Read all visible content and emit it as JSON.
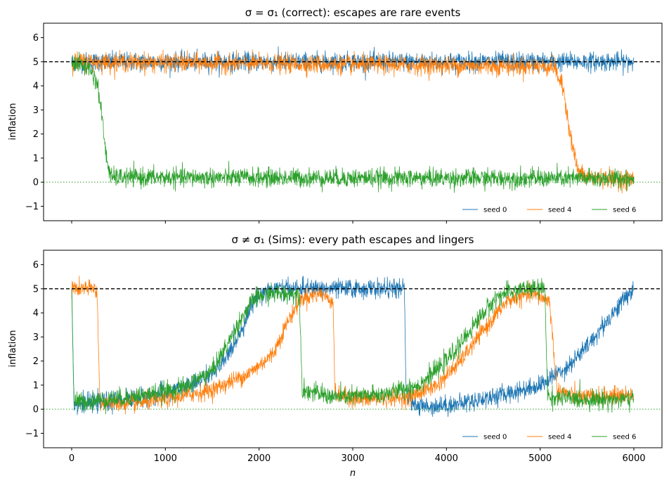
{
  "chart_data": [
    {
      "type": "line",
      "title": "σ = σ₁ (correct): escapes are rare events",
      "xlabel": "",
      "ylabel": "inflation",
      "xlim": [
        -300,
        6300
      ],
      "ylim": [
        -1.6,
        6.6
      ],
      "xticks": [
        0,
        1000,
        2000,
        3000,
        4000,
        5000,
        6000
      ],
      "yticks": [
        -1,
        0,
        1,
        2,
        3,
        4,
        5,
        6
      ],
      "ytick_labels": [
        "−1",
        "0",
        "1",
        "2",
        "3",
        "4",
        "5",
        "6"
      ],
      "x_tick_labels_shown": false,
      "reference_lines": [
        {
          "y": 5,
          "style": "dashed",
          "color": "#000000"
        },
        {
          "y": 0,
          "style": "dotted",
          "color": "#2ca02c"
        }
      ],
      "legend_position": "lower-right",
      "series": [
        {
          "name": "seed 0",
          "color": "#1f77b4",
          "noise": 0.35,
          "points": [
            [
              0,
              5
            ],
            [
              6000,
              5
            ]
          ]
        },
        {
          "name": "seed 4",
          "color": "#ff7f0e",
          "noise": 0.35,
          "points": [
            [
              0,
              5
            ],
            [
              5150,
              4.8
            ],
            [
              5250,
              3.8
            ],
            [
              5330,
              1.8
            ],
            [
              5400,
              0.5
            ],
            [
              5480,
              0.2
            ],
            [
              6000,
              0.1
            ]
          ]
        },
        {
          "name": "seed 6",
          "color": "#2ca02c",
          "noise": 0.35,
          "points": [
            [
              0,
              5
            ],
            [
              200,
              4.7
            ],
            [
              280,
              4.0
            ],
            [
              330,
              2.5
            ],
            [
              370,
              1.0
            ],
            [
              420,
              0.2
            ],
            [
              6000,
              0.15
            ]
          ]
        }
      ]
    },
    {
      "type": "line",
      "title": "σ ≠ σ₁ (Sims): every path escapes and lingers",
      "xlabel": "n",
      "ylabel": "inflation",
      "xlim": [
        -300,
        6300
      ],
      "ylim": [
        -1.6,
        6.6
      ],
      "xticks": [
        0,
        1000,
        2000,
        3000,
        4000,
        5000,
        6000
      ],
      "yticks": [
        -1,
        0,
        1,
        2,
        3,
        4,
        5,
        6
      ],
      "ytick_labels": [
        "−1",
        "0",
        "1",
        "2",
        "3",
        "4",
        "5",
        "6"
      ],
      "x_tick_labels_shown": true,
      "reference_lines": [
        {
          "y": 5,
          "style": "dashed",
          "color": "#000000"
        },
        {
          "y": 0,
          "style": "dotted",
          "color": "#2ca02c"
        }
      ],
      "legend_position": "lower-right",
      "series": [
        {
          "name": "seed 0",
          "color": "#1f77b4",
          "noise": 0.35,
          "points": [
            [
              0,
              5.2
            ],
            [
              25,
              0.2
            ],
            [
              400,
              0.3
            ],
            [
              900,
              0.6
            ],
            [
              1300,
              1.0
            ],
            [
              1600,
              1.8
            ],
            [
              1800,
              3.2
            ],
            [
              1950,
              4.6
            ],
            [
              2100,
              5.0
            ],
            [
              3550,
              5.0
            ],
            [
              3570,
              0.6
            ],
            [
              3700,
              0.1
            ],
            [
              4100,
              0.2
            ],
            [
              4600,
              0.6
            ],
            [
              5000,
              1.0
            ],
            [
              5300,
              1.8
            ],
            [
              5500,
              2.6
            ],
            [
              5700,
              3.6
            ],
            [
              5900,
              4.6
            ],
            [
              6000,
              5.0
            ]
          ]
        },
        {
          "name": "seed 4",
          "color": "#ff7f0e",
          "noise": 0.32,
          "points": [
            [
              0,
              5.0
            ],
            [
              270,
              5.0
            ],
            [
              300,
              0.3
            ],
            [
              600,
              0.2
            ],
            [
              1000,
              0.4
            ],
            [
              1500,
              0.8
            ],
            [
              1900,
              1.5
            ],
            [
              2150,
              2.3
            ],
            [
              2300,
              3.6
            ],
            [
              2450,
              4.6
            ],
            [
              2650,
              4.8
            ],
            [
              2790,
              4.5
            ],
            [
              2810,
              0.6
            ],
            [
              3100,
              0.4
            ],
            [
              3600,
              0.5
            ],
            [
              3900,
              1.0
            ],
            [
              4150,
              2.0
            ],
            [
              4400,
              3.3
            ],
            [
              4650,
              4.5
            ],
            [
              4900,
              4.8
            ],
            [
              5100,
              4.5
            ],
            [
              5180,
              0.8
            ],
            [
              5400,
              0.5
            ],
            [
              6000,
              0.6
            ]
          ]
        },
        {
          "name": "seed 6",
          "color": "#2ca02c",
          "noise": 0.35,
          "points": [
            [
              0,
              5.0
            ],
            [
              25,
              0.3
            ],
            [
              400,
              0.4
            ],
            [
              800,
              0.6
            ],
            [
              1200,
              0.9
            ],
            [
              1500,
              1.6
            ],
            [
              1650,
              2.6
            ],
            [
              1800,
              3.7
            ],
            [
              1950,
              4.6
            ],
            [
              2100,
              4.8
            ],
            [
              2430,
              4.8
            ],
            [
              2460,
              0.8
            ],
            [
              2800,
              0.5
            ],
            [
              3300,
              0.6
            ],
            [
              3700,
              1.0
            ],
            [
              3950,
              1.8
            ],
            [
              4150,
              2.7
            ],
            [
              4350,
              3.8
            ],
            [
              4550,
              4.7
            ],
            [
              4800,
              5.0
            ],
            [
              5050,
              5.0
            ],
            [
              5080,
              0.5
            ],
            [
              5500,
              0.4
            ],
            [
              6000,
              0.4
            ]
          ]
        }
      ]
    }
  ]
}
